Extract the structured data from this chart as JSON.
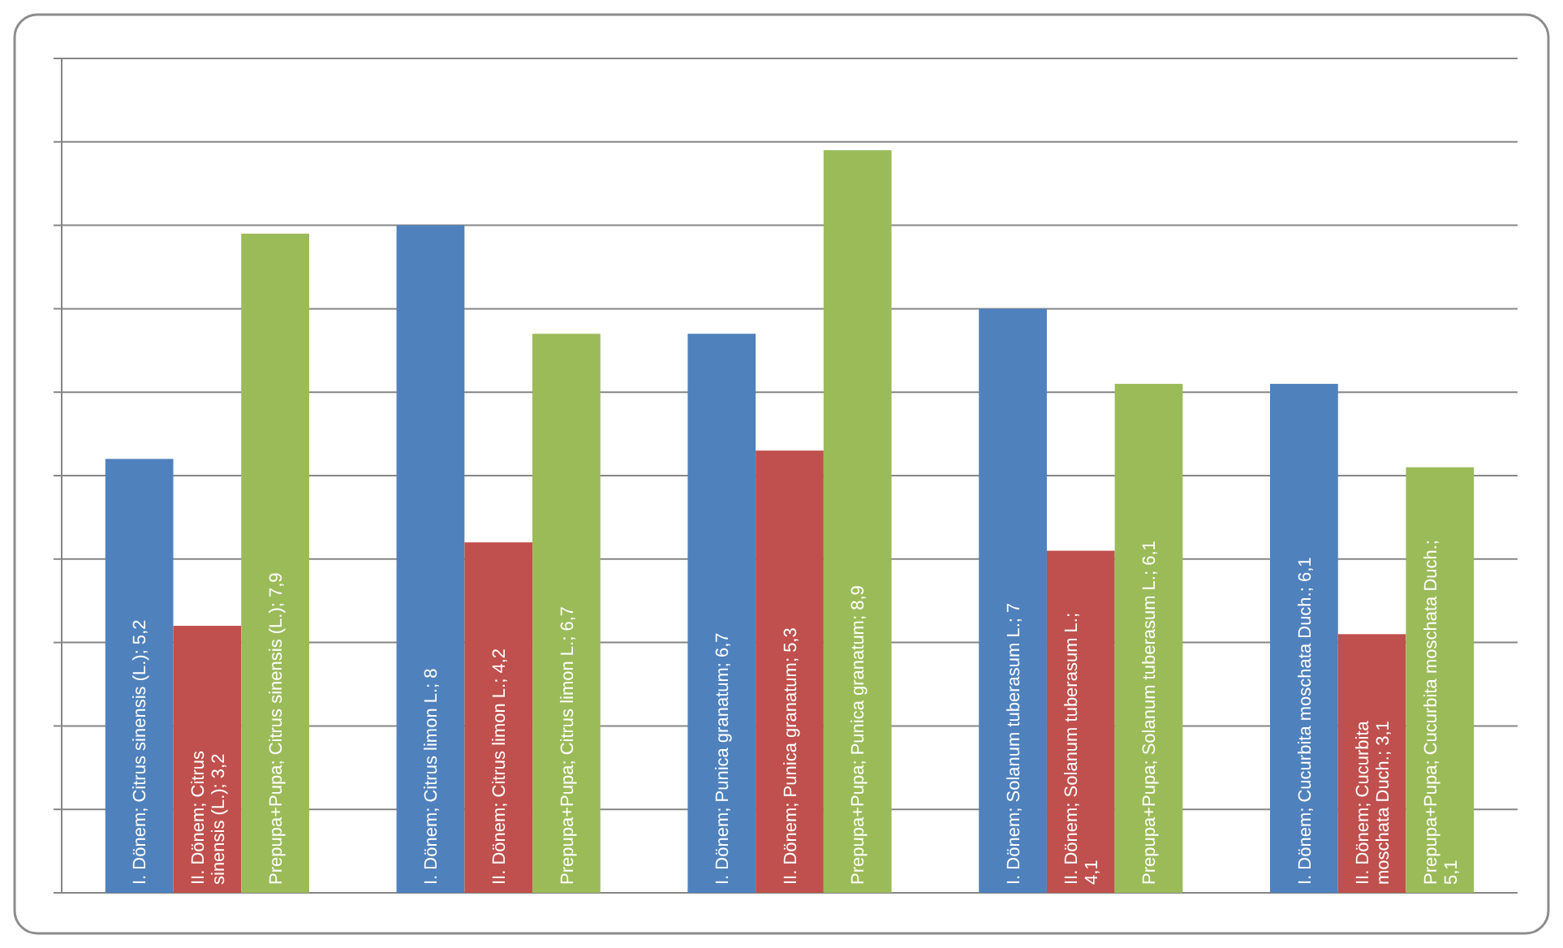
{
  "chart_data": {
    "type": "bar",
    "categories": [
      null,
      null,
      null,
      null,
      null
    ],
    "series": [
      {
        "color": "#4f81bd",
        "values": [
          5.2,
          8,
          6.7,
          7,
          6.1
        ],
        "value_labels": [
          "I. Dönem; Citrus sinensis (L.); 5,2",
          "I. Dönem; Citrus limon L.; 8",
          "I. Dönem; Punica granatum; 6,7",
          "I. Dönem; Solanum tuberasum L.; 7",
          "I. Dönem; Cucurbita moschata Duch.; 6,1"
        ]
      },
      {
        "color": "#c0504d",
        "values": [
          3.2,
          4.2,
          5.3,
          4.1,
          3.1
        ],
        "value_labels": [
          "II. Dönem; Citrus sinensis (L.); 3,2",
          "II. Dönem; Citrus limon L.; 4,2",
          "II. Dönem; Punica granatum; 5,3",
          "II. Dönem; Solanum tuberasum L.; 4,1",
          "II. Dönem; Cucurbita moschata Duch.; 3,1"
        ]
      },
      {
        "color": "#9bbb59",
        "values": [
          7.9,
          6.7,
          8.9,
          6.1,
          5.1
        ],
        "value_labels": [
          "Prepupa+Pupa; Citrus sinensis (L.); 7,9",
          "Prepupa+Pupa; Citrus limon L.; 6,7",
          "Prepupa+Pupa; Punica granatum; 8,9",
          "Prepupa+Pupa; Solanum tuberasum L.; 6,1",
          "Prepupa+Pupa; Cucurbita moschata Duch.; 5,1"
        ]
      }
    ],
    "ylim": [
      0,
      10
    ],
    "yticks": [
      {
        "value": 0,
        "label": null
      },
      {
        "value": 1,
        "label": null
      },
      {
        "value": 2,
        "label": null
      },
      {
        "value": 3,
        "label": null
      },
      {
        "value": 4,
        "label": null
      },
      {
        "value": 5,
        "label": null
      },
      {
        "value": 6,
        "label": null
      },
      {
        "value": 7,
        "label": null
      },
      {
        "value": 8,
        "label": null
      },
      {
        "value": 9,
        "label": null
      },
      {
        "value": 10,
        "label": null
      }
    ],
    "grid": "y"
  }
}
